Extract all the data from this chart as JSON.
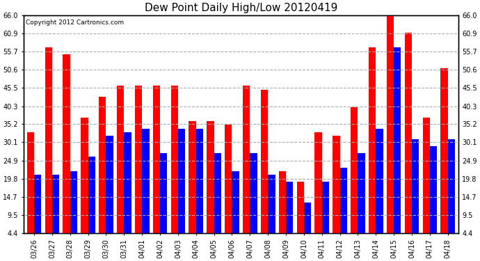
{
  "title": "Dew Point Daily High/Low 20120419",
  "copyright": "Copyright 2012 Cartronics.com",
  "dates": [
    "03/26",
    "03/27",
    "03/28",
    "03/29",
    "03/30",
    "03/31",
    "04/01",
    "04/02",
    "04/03",
    "04/04",
    "04/05",
    "04/06",
    "04/07",
    "04/08",
    "04/09",
    "04/10",
    "04/11",
    "04/12",
    "04/13",
    "04/14",
    "04/15",
    "04/16",
    "04/17",
    "04/18"
  ],
  "high": [
    33,
    57,
    55,
    37,
    43,
    46,
    46,
    46,
    46,
    36,
    36,
    35,
    46,
    45,
    22,
    19,
    33,
    32,
    40,
    57,
    66,
    61,
    37,
    51
  ],
  "low": [
    21,
    21,
    22,
    26,
    32,
    33,
    34,
    27,
    34,
    34,
    27,
    22,
    27,
    21,
    19,
    13,
    19,
    23,
    27,
    34,
    57,
    31,
    29,
    31
  ],
  "bar_color_high": "#ff0000",
  "bar_color_low": "#0000ff",
  "bg_color": "#ffffff",
  "plot_bg_color": "#ffffff",
  "grid_color": "#aaaaaa",
  "yticks": [
    4.4,
    9.5,
    14.7,
    19.8,
    24.9,
    30.1,
    35.2,
    40.3,
    45.5,
    50.6,
    55.7,
    60.9,
    66.0
  ],
  "ymin": 4.4,
  "ymax": 66.0,
  "title_fontsize": 11,
  "tick_fontsize": 7,
  "copyright_fontsize": 6.5
}
